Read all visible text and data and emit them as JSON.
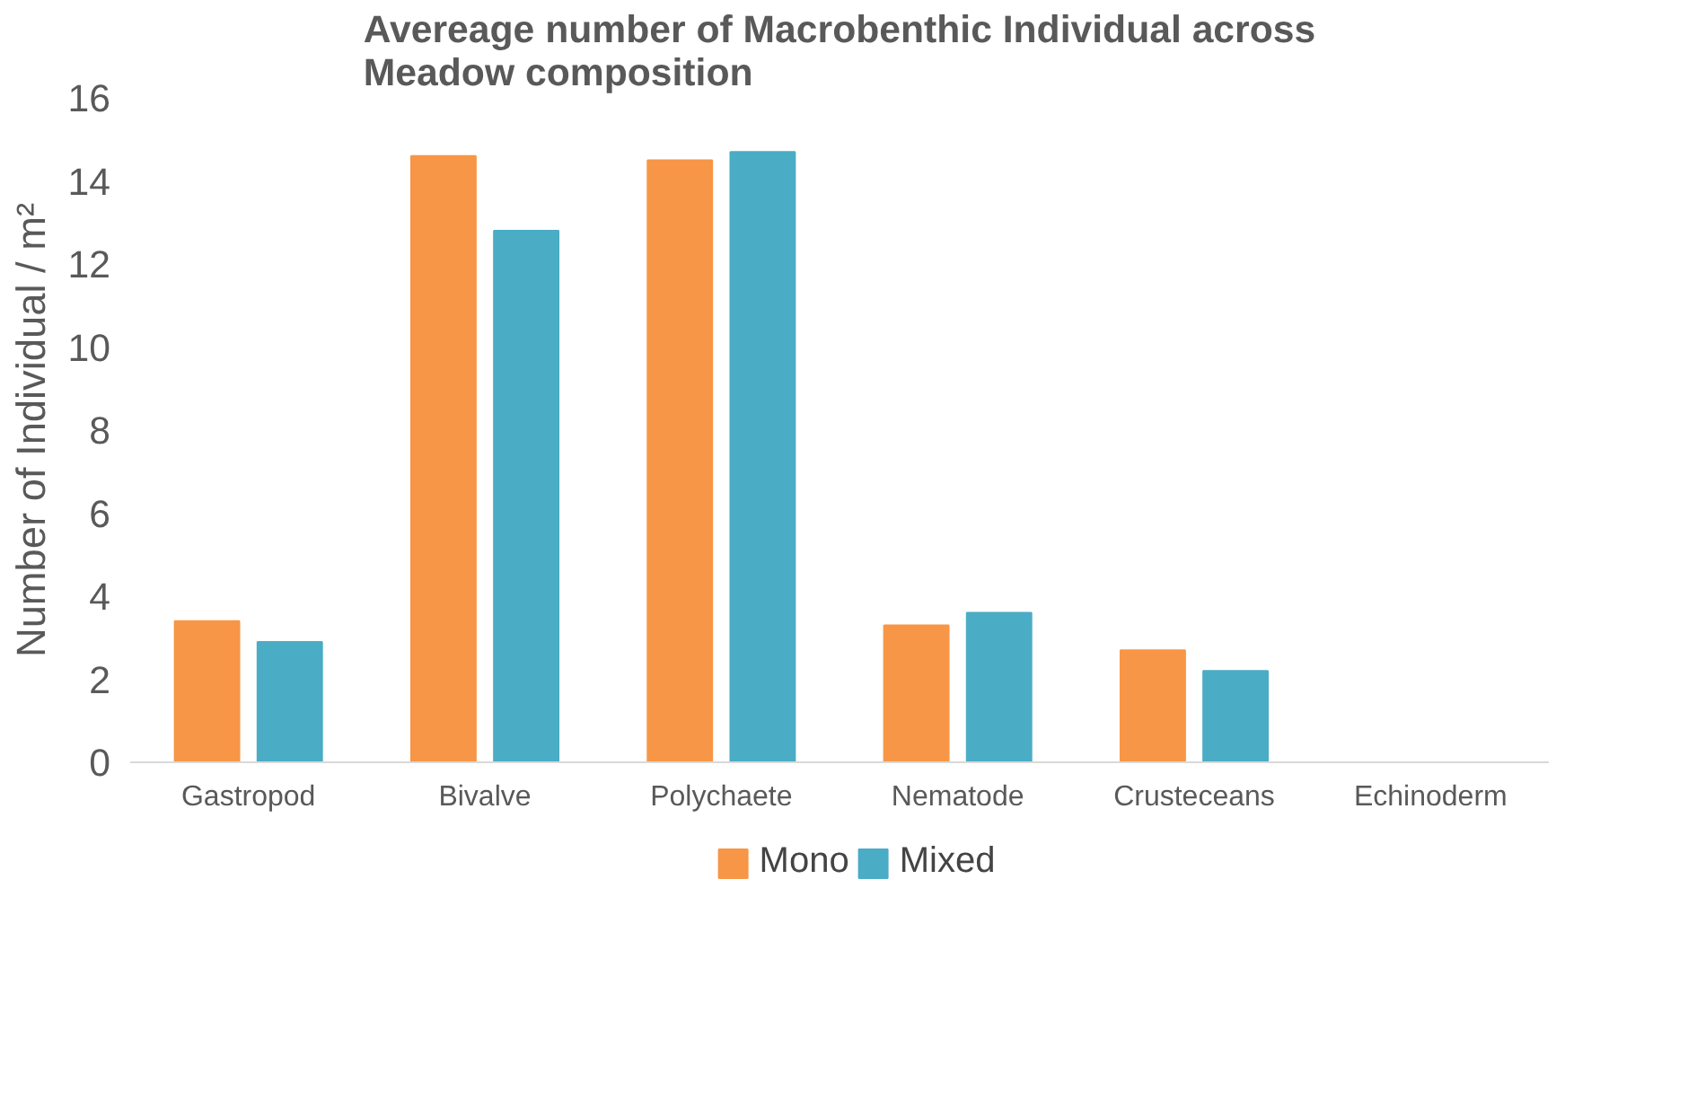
{
  "chart_data": {
    "type": "bar",
    "title": "Avereage number of Macrobenthic Individual across Meadow composition",
    "ylabel": "Number of Individual / m²",
    "categories": [
      "Gastropod",
      "Bivalve",
      "Polychaete",
      "Nematode",
      "Crusteceans",
      "Echinoderm"
    ],
    "series": [
      {
        "name": "Mono",
        "color": "#f79646",
        "values": [
          3.4,
          14.6,
          14.5,
          3.3,
          2.7,
          null
        ]
      },
      {
        "name": "Mixed",
        "color": "#4bacc6",
        "values": [
          2.9,
          12.8,
          14.7,
          3.6,
          2.2,
          null
        ]
      }
    ],
    "ylim": [
      0,
      16
    ],
    "yticks": [
      0,
      2,
      4,
      6,
      8,
      10,
      12,
      14,
      16
    ],
    "grid": false,
    "legend": "bottom"
  }
}
